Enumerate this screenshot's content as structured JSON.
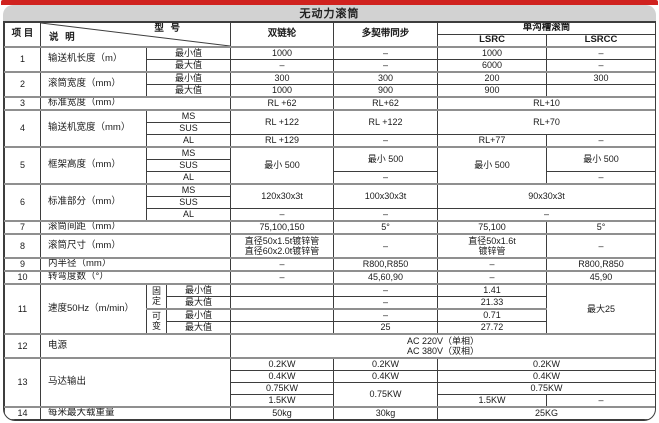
{
  "title": "无动力滚筒",
  "colors": {
    "accent_red": "#d0221f",
    "band_gray": "#d2d2d2",
    "border_dark": "#3d3d3d",
    "border_heavy": "#8f8f8f"
  },
  "table": {
    "header": {
      "item": "项 目",
      "desc": "说 明",
      "model": "型 号",
      "col1": "双链轮",
      "col2": "多契带同步",
      "col34": "单沟槽滚筒",
      "col3": "LSRC",
      "col4": "LSRCC"
    },
    "body": [
      {
        "maj": true,
        "cells": [
          {
            "t": "1",
            "rs": 2,
            "n": "item-number"
          },
          {
            "t": "输送机长度（m）",
            "rs": 2,
            "cls": "lbl",
            "n": "row-label"
          },
          {
            "t": "最小值",
            "cs": 2,
            "n": "sub-label"
          },
          {
            "t": "1000"
          },
          {
            "t": "–"
          },
          {
            "t": "1000"
          },
          {
            "t": "–"
          }
        ]
      },
      {
        "cells": [
          {
            "t": "最大值",
            "cs": 2,
            "n": "sub-label"
          },
          {
            "t": "–"
          },
          {
            "t": "–"
          },
          {
            "t": "6000"
          },
          {
            "t": "–"
          }
        ]
      },
      {
        "maj": true,
        "cells": [
          {
            "t": "2",
            "rs": 2,
            "n": "item-number"
          },
          {
            "t": "滚筒宽度（mm）",
            "rs": 2,
            "cls": "lbl",
            "n": "row-label"
          },
          {
            "t": "最小值",
            "cs": 2,
            "n": "sub-label"
          },
          {
            "t": "300"
          },
          {
            "t": "300"
          },
          {
            "t": "200"
          },
          {
            "t": "300"
          }
        ]
      },
      {
        "cells": [
          {
            "t": "最大值",
            "cs": 2,
            "n": "sub-label"
          },
          {
            "t": "1000"
          },
          {
            "t": "900"
          },
          {
            "t": "900"
          },
          {
            "t": ""
          }
        ]
      },
      {
        "maj": true,
        "cells": [
          {
            "t": "3",
            "n": "item-number"
          },
          {
            "t": "标准宽度（mm）",
            "cs": 3,
            "cls": "lbl",
            "n": "row-label"
          },
          {
            "t": "RL +62"
          },
          {
            "t": "RL+62"
          },
          {
            "t": "RL+10",
            "cs": 2
          }
        ]
      },
      {
        "maj": true,
        "cells": [
          {
            "t": "4",
            "rs": 3,
            "n": "item-number"
          },
          {
            "t": "输送机宽度（mm）",
            "rs": 3,
            "cls": "lbl",
            "n": "row-label"
          },
          {
            "t": "MS",
            "cs": 2,
            "n": "sub-label"
          },
          {
            "t": "RL +122",
            "rs": 2
          },
          {
            "t": "RL +122",
            "rs": 2
          },
          {
            "t": "RL+70",
            "cs": 2,
            "rs": 2
          }
        ]
      },
      {
        "cells": [
          {
            "t": "SUS",
            "cs": 2,
            "n": "sub-label"
          }
        ]
      },
      {
        "cells": [
          {
            "t": "AL",
            "cs": 2,
            "n": "sub-label"
          },
          {
            "t": "RL +129"
          },
          {
            "t": "–"
          },
          {
            "t": "RL+77"
          },
          {
            "t": "–"
          }
        ]
      },
      {
        "maj": true,
        "cells": [
          {
            "t": "5",
            "rs": 3,
            "n": "item-number"
          },
          {
            "t": "框架高度（mm）",
            "rs": 3,
            "cls": "lbl",
            "n": "row-label"
          },
          {
            "t": "MS",
            "cs": 2,
            "n": "sub-label"
          },
          {
            "t": "最小 500",
            "rs": 3
          },
          {
            "t": "最小 500",
            "rs": 2
          },
          {
            "t": "最小 500",
            "rs": 3
          },
          {
            "t": "最小 500",
            "rs": 2
          }
        ]
      },
      {
        "cells": [
          {
            "t": "SUS",
            "cs": 2,
            "n": "sub-label"
          }
        ]
      },
      {
        "cells": [
          {
            "t": "AL",
            "cs": 2,
            "n": "sub-label"
          },
          {
            "t": "–"
          },
          {
            "t": "–"
          }
        ]
      },
      {
        "maj": true,
        "cells": [
          {
            "t": "6",
            "rs": 3,
            "n": "item-number"
          },
          {
            "t": "标准部分（mm）",
            "rs": 3,
            "cls": "lbl",
            "n": "row-label"
          },
          {
            "t": "MS",
            "cs": 2,
            "n": "sub-label"
          },
          {
            "t": "120x30x3t",
            "rs": 2
          },
          {
            "t": "100x30x3t",
            "rs": 2
          },
          {
            "t": "90x30x3t",
            "cs": 2,
            "rs": 2
          }
        ]
      },
      {
        "cells": [
          {
            "t": "SUS",
            "cs": 2,
            "n": "sub-label"
          }
        ]
      },
      {
        "cells": [
          {
            "t": "AL",
            "cs": 2,
            "n": "sub-label"
          },
          {
            "t": "–"
          },
          {
            "t": "–"
          },
          {
            "t": "–",
            "cs": 2
          }
        ]
      },
      {
        "maj": true,
        "cells": [
          {
            "t": "7",
            "n": "item-number"
          },
          {
            "t": "滚筒间距（mm）",
            "cs": 3,
            "cls": "lbl",
            "n": "row-label"
          },
          {
            "t": "75,100,150"
          },
          {
            "t": "5°"
          },
          {
            "t": "75,100"
          },
          {
            "t": "5°"
          }
        ]
      },
      {
        "maj": true,
        "cls": "h2",
        "cells": [
          {
            "t": "8",
            "n": "item-number"
          },
          {
            "t": "滚筒尺寸（mm）",
            "cs": 3,
            "cls": "lbl",
            "n": "row-label"
          },
          {
            "t": "直径50x1.5t镀锌管\n直径60x2.0t镀锌管",
            "cls": "ml"
          },
          {
            "t": "–"
          },
          {
            "t": "直径50x1.6t\n镀锌管",
            "cls": "ml"
          },
          {
            "t": "–"
          }
        ]
      },
      {
        "maj": true,
        "cells": [
          {
            "t": "9",
            "n": "item-number"
          },
          {
            "t": "内半径（mm）",
            "cs": 3,
            "cls": "lbl",
            "n": "row-label"
          },
          {
            "t": "–"
          },
          {
            "t": "R800,R850"
          },
          {
            "t": "–"
          },
          {
            "t": "R800,R850"
          }
        ]
      },
      {
        "maj": true,
        "cells": [
          {
            "t": "10",
            "n": "item-number"
          },
          {
            "t": "转弯度数（°）",
            "cs": 3,
            "cls": "lbl",
            "n": "row-label"
          },
          {
            "t": "–"
          },
          {
            "t": "45,60,90"
          },
          {
            "t": "–"
          },
          {
            "t": "45,90"
          }
        ]
      },
      {
        "maj": true,
        "cells": [
          {
            "t": "11",
            "rs": 4,
            "n": "item-number"
          },
          {
            "t": "速度50Hz（m/min）",
            "rs": 4,
            "cls": "lbl",
            "n": "row-label"
          },
          {
            "t": "固\n定",
            "rs": 2,
            "cls": "vt",
            "n": "sub-group-label"
          },
          {
            "t": "最小值",
            "n": "sub-label"
          },
          {
            "t": ""
          },
          {
            "t": "–"
          },
          {
            "t": "1.41"
          },
          {
            "t": "最大25",
            "rs": 4
          }
        ]
      },
      {
        "cells": [
          {
            "t": "最大值",
            "n": "sub-label"
          },
          {
            "t": ""
          },
          {
            "t": "–"
          },
          {
            "t": "21.33"
          }
        ]
      },
      {
        "cells": [
          {
            "t": "可\n变",
            "rs": 2,
            "cls": "vt bt2",
            "n": "sub-group-label"
          },
          {
            "t": "最小值",
            "cls": "bt2",
            "n": "sub-label"
          },
          {
            "t": "",
            "cls": "bt2"
          },
          {
            "t": "–",
            "cls": "bt2"
          },
          {
            "t": "0.71",
            "cls": "bt2"
          }
        ]
      },
      {
        "cells": [
          {
            "t": "最大值",
            "n": "sub-label"
          },
          {
            "t": ""
          },
          {
            "t": "25"
          },
          {
            "t": "27.72"
          }
        ]
      },
      {
        "maj": true,
        "cls": "h2",
        "cells": [
          {
            "t": "12",
            "n": "item-number"
          },
          {
            "t": "电源",
            "cs": 3,
            "cls": "lbl",
            "n": "row-label"
          },
          {
            "t": "AC 220V（单相）\nAC 380V（双相）",
            "cs": 4,
            "cls": "ml"
          }
        ]
      },
      {
        "maj": true,
        "cells": [
          {
            "t": "13",
            "rs": 4,
            "n": "item-number"
          },
          {
            "t": "马达输出",
            "cs": 3,
            "rs": 4,
            "cls": "lbl",
            "n": "row-label"
          },
          {
            "t": "0.2KW"
          },
          {
            "t": "0.2KW"
          },
          {
            "t": "0.2KW",
            "cs": 2
          }
        ]
      },
      {
        "cells": [
          {
            "t": "0.4KW"
          },
          {
            "t": "0.4KW"
          },
          {
            "t": "0.4KW",
            "cs": 2
          }
        ]
      },
      {
        "cells": [
          {
            "t": "0.75KW"
          },
          {
            "t": "0.75KW",
            "rs": 2
          },
          {
            "t": "0.75KW",
            "cs": 2
          }
        ]
      },
      {
        "cells": [
          {
            "t": "1.5KW"
          },
          {
            "t": "1.5KW"
          },
          {
            "t": "–"
          }
        ]
      },
      {
        "maj": true,
        "cells": [
          {
            "t": "14",
            "n": "item-number"
          },
          {
            "t": "每米最大载重量",
            "cs": 3,
            "cls": "lbl",
            "n": "row-label"
          },
          {
            "t": "50kg"
          },
          {
            "t": "30kg"
          },
          {
            "t": "25KG",
            "cs": 2
          }
        ]
      }
    ]
  }
}
